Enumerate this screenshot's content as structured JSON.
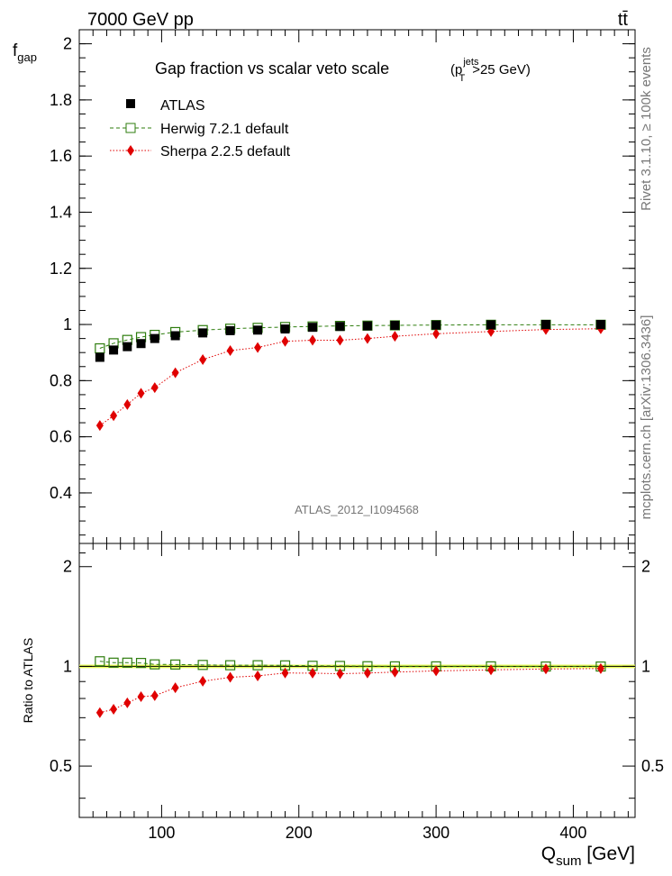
{
  "header": {
    "left": "7000 GeV pp",
    "right": "tt̄"
  },
  "side_labels": {
    "rivet": "Rivet 3.1.10, ≥ 100k events",
    "mcplots": "mcplots.cern.ch [arXiv:1306.3436]"
  },
  "chart_data": [
    {
      "type": "scatter",
      "title": "Gap fraction vs scalar veto scale",
      "title_cut_p": "(p",
      "title_cut_sup": "jets",
      "title_cut_sub": "T",
      "title_cut_tail": ">25 GeV)",
      "analysis_label": "ATLAS_2012_I1094568",
      "ylabel_main": "f",
      "ylabel_sub": "gap",
      "ylim": [
        0.22,
        2.05
      ],
      "xlim": [
        40,
        445
      ],
      "yticks": [
        "0.4",
        "0.6",
        "0.8",
        "1",
        "1.2",
        "1.4",
        "1.6",
        "1.8",
        "2"
      ],
      "ytick_values": [
        0.4,
        0.6,
        0.8,
        1.0,
        1.2,
        1.4,
        1.6,
        1.8,
        2.0
      ],
      "x": [
        55,
        65,
        75,
        85,
        95,
        110,
        130,
        150,
        170,
        190,
        210,
        230,
        250,
        270,
        300,
        340,
        380,
        420
      ],
      "series": [
        {
          "name": "ATLAS",
          "color": "#000000",
          "marker": "filled-square",
          "values": [
            0.883,
            0.909,
            0.921,
            0.932,
            0.95,
            0.96,
            0.97,
            0.978,
            0.98,
            0.984,
            0.99,
            0.993,
            0.995,
            0.997,
            0.998,
            0.999,
            1.0,
            1.0
          ]
        },
        {
          "name": "Herwig 7.2.1 default",
          "color": "#2e7d0e",
          "marker": "open-square",
          "line": "dashed",
          "values": [
            0.915,
            0.933,
            0.945,
            0.955,
            0.963,
            0.973,
            0.98,
            0.985,
            0.988,
            0.991,
            0.993,
            0.995,
            0.996,
            0.997,
            0.998,
            0.999,
            0.999,
            0.999
          ]
        },
        {
          "name": "Sherpa 2.2.5 default",
          "color": "#e00000",
          "marker": "filled-diamond",
          "line": "dotted",
          "values": [
            0.64,
            0.675,
            0.715,
            0.755,
            0.775,
            0.828,
            0.875,
            0.907,
            0.918,
            0.94,
            0.944,
            0.944,
            0.95,
            0.958,
            0.967,
            0.975,
            0.982,
            0.985
          ]
        }
      ]
    },
    {
      "type": "scatter",
      "ylabel": "Ratio to ATLAS",
      "xlabel_main": "Q",
      "xlabel_sub": "sum",
      "xlabel_tail": " [GeV]",
      "ylim": [
        0.35,
        2.35
      ],
      "xlim": [
        40,
        445
      ],
      "yticks": [
        "0.5",
        "1",
        "2"
      ],
      "ytick_values": [
        0.5,
        1.0,
        2.0
      ],
      "xticks": [
        "100",
        "200",
        "300",
        "400"
      ],
      "xtick_values": [
        100,
        200,
        300,
        400
      ],
      "x": [
        55,
        65,
        75,
        85,
        95,
        110,
        130,
        150,
        170,
        190,
        210,
        230,
        250,
        270,
        300,
        340,
        380,
        420
      ],
      "band_color": "#eaff5a",
      "series": [
        {
          "name": "Herwig 7.2.1 default",
          "color": "#2e7d0e",
          "marker": "open-square",
          "line": "dashed",
          "values": [
            1.036,
            1.026,
            1.026,
            1.024,
            1.014,
            1.013,
            1.01,
            1.008,
            1.008,
            1.007,
            1.004,
            1.003,
            1.001,
            1.0,
            1.0,
            1.0,
            0.999,
            0.999
          ]
        },
        {
          "name": "Sherpa 2.2.5 default",
          "color": "#e00000",
          "marker": "filled-diamond",
          "line": "dotted",
          "values": [
            0.725,
            0.742,
            0.776,
            0.81,
            0.816,
            0.862,
            0.902,
            0.927,
            0.936,
            0.955,
            0.954,
            0.95,
            0.955,
            0.961,
            0.969,
            0.976,
            0.982,
            0.985
          ]
        }
      ]
    }
  ]
}
